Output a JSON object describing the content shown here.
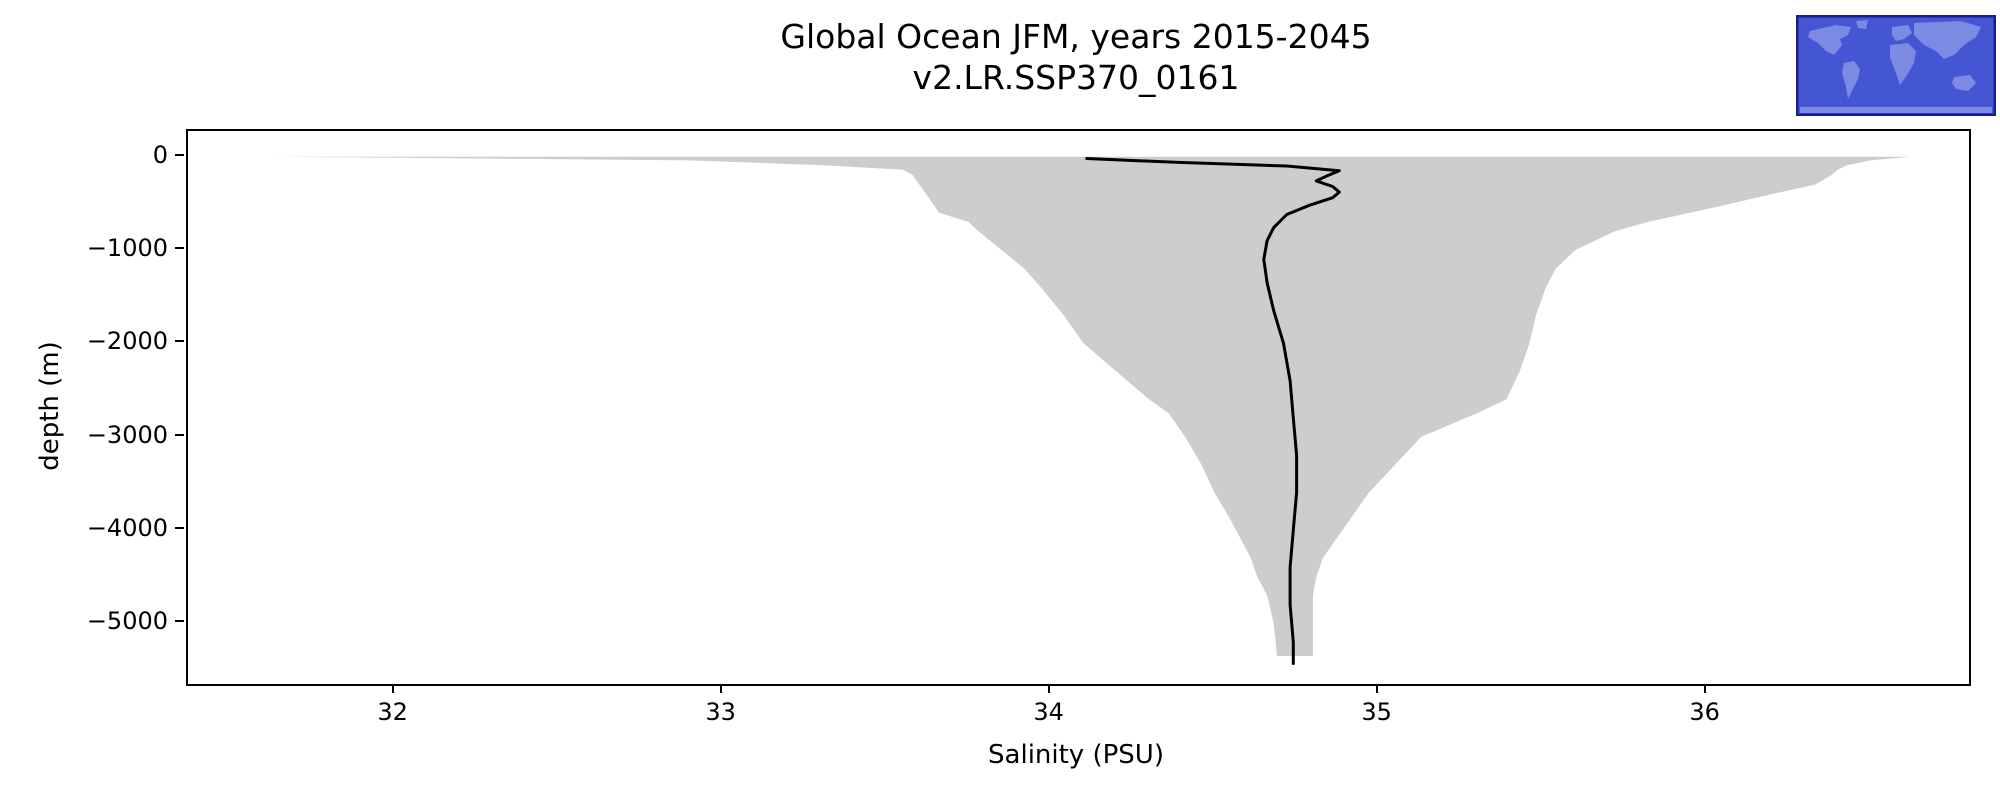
{
  "title": {
    "line1": "Global Ocean JFM, years 2015-2045",
    "line2": "v2.LR.SSP370_0161"
  },
  "chart_data": {
    "type": "area",
    "title": "Global Ocean JFM, years 2015-2045\nv2.LR.SSP370_0161",
    "xlabel": "Salinity (PSU)",
    "ylabel": "depth (m)",
    "xlim": [
      31.37,
      36.8
    ],
    "ylim": [
      -5650,
      275
    ],
    "xticks": [
      32,
      33,
      34,
      35,
      36
    ],
    "xtick_labels": [
      "32",
      "33",
      "34",
      "35",
      "36"
    ],
    "yticks": [
      0,
      -1000,
      -2000,
      -3000,
      -4000,
      -5000
    ],
    "ytick_labels": [
      "0",
      "−1000",
      "−2000",
      "−3000",
      "−4000",
      "−5000"
    ],
    "grid": false,
    "legend": "none",
    "envelope_color": "#cdcdcd",
    "line_color": "#000000",
    "series": [
      {
        "name": "salinity min-max range by depth",
        "type": "band",
        "depth": [
          0,
          -40,
          -90,
          -140,
          -200,
          -300,
          -400,
          -500,
          -600,
          -700,
          -800,
          -1000,
          -1200,
          -1400,
          -1700,
          -2000,
          -2300,
          -2600,
          -2750,
          -3000,
          -3300,
          -3600,
          -3900,
          -4100,
          -4300,
          -4500,
          -4700,
          -5000,
          -5350
        ],
        "min": [
          31.62,
          32.9,
          33.3,
          33.55,
          33.58,
          33.6,
          33.62,
          33.64,
          33.66,
          33.75,
          33.78,
          33.85,
          33.92,
          33.97,
          34.04,
          34.1,
          34.2,
          34.3,
          34.36,
          34.41,
          34.46,
          34.5,
          34.55,
          34.58,
          34.61,
          34.63,
          34.66,
          34.68,
          34.69
        ],
        "max": [
          36.62,
          36.5,
          36.43,
          36.4,
          36.38,
          36.33,
          36.2,
          36.08,
          35.95,
          35.82,
          35.72,
          35.6,
          35.54,
          35.51,
          35.48,
          35.46,
          35.43,
          35.39,
          35.3,
          35.13,
          35.05,
          34.97,
          34.91,
          34.87,
          34.83,
          34.81,
          34.8,
          34.8,
          34.8
        ]
      },
      {
        "name": "mean salinity profile",
        "type": "line",
        "depth": [
          -20,
          -60,
          -100,
          -150,
          -210,
          -260,
          -320,
          -380,
          -440,
          -520,
          -620,
          -760,
          -900,
          -1100,
          -1350,
          -1650,
          -2000,
          -2400,
          -2800,
          -3200,
          -3600,
          -4000,
          -4400,
          -4800,
          -5200,
          -5430
        ],
        "salinity": [
          34.11,
          34.38,
          34.72,
          34.88,
          34.84,
          34.81,
          34.86,
          34.88,
          34.86,
          34.79,
          34.72,
          34.68,
          34.66,
          34.65,
          34.66,
          34.68,
          34.71,
          34.73,
          34.74,
          34.75,
          34.75,
          34.74,
          34.73,
          34.73,
          34.74,
          34.74
        ]
      }
    ]
  },
  "inset_map": {
    "label": "global-ocean-region-thumbnail",
    "ocean_color": "#4456d4",
    "land_color": "#7d8ae3",
    "border_color": "#1a1f8f"
  }
}
